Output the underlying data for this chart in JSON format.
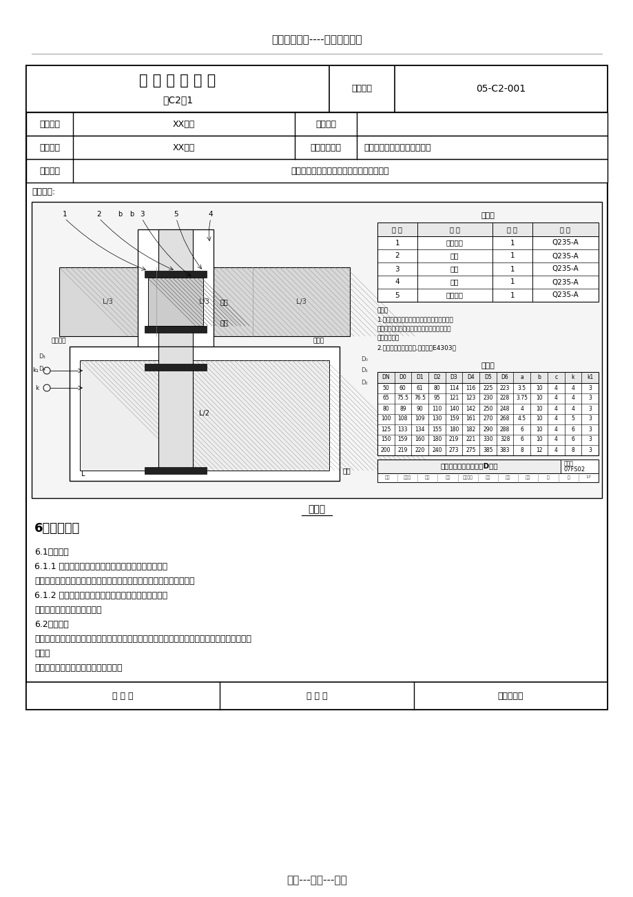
{
  "page_title": "精选优质文档----倾情为你奉上",
  "footer_title": "专心---专注---专业",
  "doc_title": "技 术 交 底 记 录",
  "doc_subtitle": "表C2－1",
  "ref_label": "资料编号",
  "ref_value": "05-C2-001",
  "row2": {
    "label": "工程名称",
    "value": "XX项目",
    "label2": "交底日期",
    "value2": ""
  },
  "row3": {
    "label": "施工单位",
    "value": "XX公司",
    "label2": "分项工程名称",
    "value2": "人防给排水（结构配合）工程"
  },
  "row4": {
    "label": "交底提要",
    "value": "人防套管制作、安装、质量要求及施工工艺"
  },
  "content_label": "交底内容:",
  "figure_caption": "图示二",
  "section_title": "6、质量标准",
  "paragraphs": [
    {
      "text": "6.1主控项目",
      "indent": 12
    },
    {
      "text": "6.1.1 套管的标高和定位尺寸正负偏差符合设计要求。",
      "indent": 12
    },
    {
      "text": "检验方法：用水准仪（水平尺）拉线和尺量检查或检查隐蔽工程记录。",
      "indent": 12
    },
    {
      "text": "6.1.2 套管长度及规格符合设计要求和施工规范规定。",
      "indent": 12
    },
    {
      "text": "检验方法：观察和尺量检查。",
      "indent": 12
    },
    {
      "text": "6.2一般项目",
      "indent": 12
    },
    {
      "text": "钢管的焊接焊口平直，焊波均匀一致，焊缝表面无结瘤、夹渣和气孔。焊缝加强面符合施工规范",
      "indent": 12
    },
    {
      "text": "规定。",
      "indent": 12
    },
    {
      "text": "检查方法：观察或用焊接检测尺检查。",
      "indent": 12
    }
  ],
  "bottom_row": [
    "审 核 人",
    "交 底 人",
    "接受交底人"
  ],
  "mat_headers": [
    "编 号",
    "名 称",
    "数 量",
    "材 料"
  ],
  "mat_rows": [
    [
      "1",
      "钢制套管",
      "1",
      "Q235-A"
    ],
    [
      "2",
      "翼环",
      "1",
      "Q235-A"
    ],
    [
      "3",
      "衬圈",
      "1",
      "Q235-A"
    ],
    [
      "4",
      "挡板",
      "1",
      "Q235-A"
    ],
    [
      "5",
      "固定法兰",
      "1",
      "Q235-A"
    ]
  ],
  "notes": [
    "说明：",
    "1.钢管和衬圈焊接后，经镀锌处理，再施行与",
    "套管安装。填充材料施工完后，施行挡板和固",
    "定法兰焊接。",
    "2.焊接采用手工电弧焊,焊条型号E4303。"
  ],
  "dim_headers": [
    "DN",
    "D0",
    "D1",
    "D2",
    "D3",
    "D4",
    "D5",
    "D6",
    "a",
    "b",
    "c",
    "k",
    "k1"
  ],
  "dim_data": [
    [
      "50",
      "60",
      "61",
      "80",
      "114",
      "116",
      "225",
      "223",
      "3.5",
      "10",
      "4",
      "4",
      "3"
    ],
    [
      "65",
      "75.5",
      "76.5",
      "95",
      "121",
      "123",
      "230",
      "228",
      "3.75",
      "10",
      "4",
      "4",
      "3"
    ],
    [
      "80",
      "89",
      "90",
      "110",
      "140",
      "142",
      "250",
      "248",
      "4",
      "10",
      "4",
      "4",
      "3"
    ],
    [
      "100",
      "108",
      "109",
      "130",
      "159",
      "161",
      "270",
      "268",
      "4.5",
      "10",
      "4",
      "5",
      "3"
    ],
    [
      "125",
      "133",
      "134",
      "155",
      "180",
      "182",
      "290",
      "288",
      "6",
      "10",
      "4",
      "6",
      "3"
    ],
    [
      "150",
      "159",
      "160",
      "180",
      "219",
      "221",
      "330",
      "328",
      "6",
      "10",
      "4",
      "6",
      "3"
    ],
    [
      "200",
      "219",
      "220",
      "240",
      "273",
      "275",
      "385",
      "383",
      "8",
      "12",
      "4",
      "8",
      "3"
    ]
  ],
  "draw_label": "防护密闭套管安装图（D型）",
  "atlas_no": "07FS02",
  "page_no": "17",
  "bg_color": "#ffffff"
}
